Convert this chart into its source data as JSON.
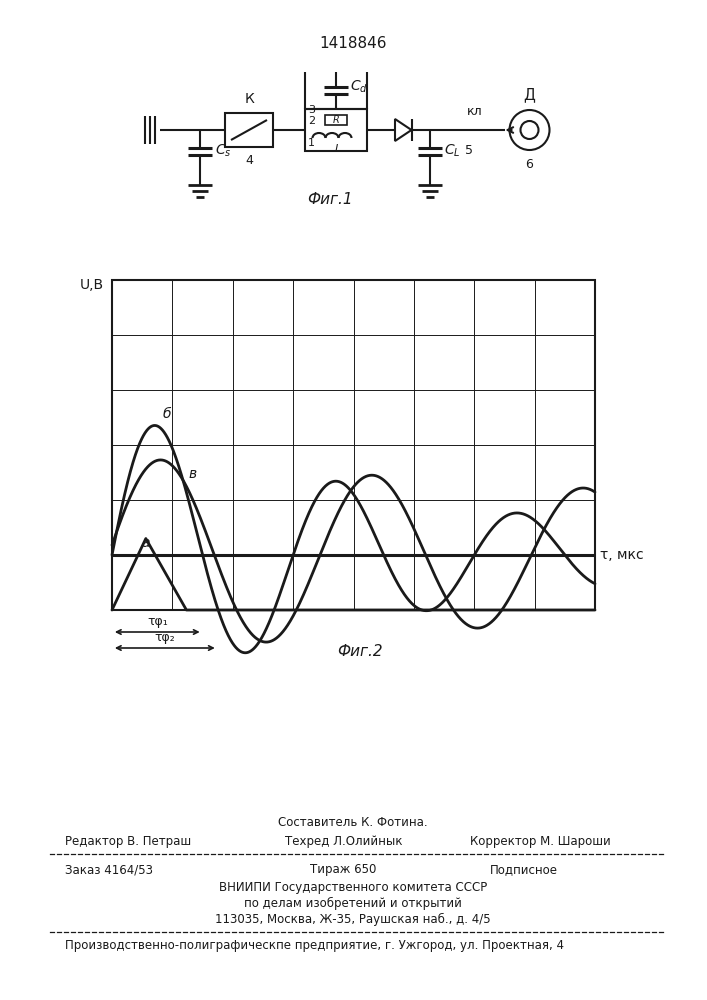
{
  "patent_number": "1418846",
  "fig1_caption": "Фиг.1",
  "fig2_caption": "Фиг.2",
  "graph_xlabel": "τ, мкс",
  "graph_ylabel": "U,В",
  "bg_color": "#ffffff",
  "line_color": "#1a1a1a",
  "footer": {
    "sostavitel": "Составитель К. Фотина.",
    "tekhred": "Техред Л.Олийнык",
    "korrektor": "Корректор М. Шароши",
    "editor": "Редактор В. Петраш",
    "zakaz": "Заказ 4164/53",
    "tirazh": "Тираж 650",
    "podpisnoe": "Подписное",
    "vniiipi": "ВНИИПИ Государственного комитета СССР",
    "podel": "по делам изобретений и открытий",
    "address": "113035, Москва, Ж-35, Раушская наб., д. 4/5",
    "production": "Производственно-полиграфическпе предприятие, г. Ужгород, ул. Проектная, 4"
  }
}
